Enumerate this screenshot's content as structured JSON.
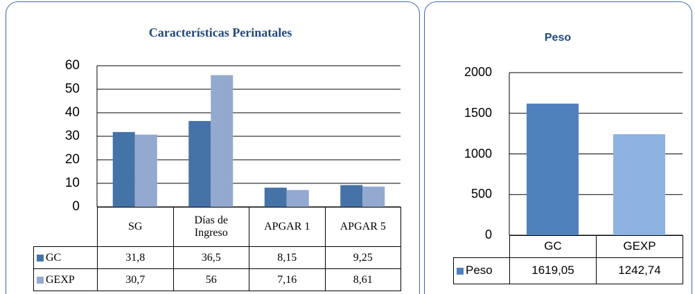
{
  "chart_data": [
    {
      "type": "bar",
      "title": "Características Perinatales",
      "categories": [
        "SG",
        "Días de Ingreso",
        "APGAR 1",
        "APGAR 5"
      ],
      "series": [
        {
          "name": "GC",
          "color": "#4572a7",
          "values": [
            31.8,
            36.5,
            8.15,
            9.25
          ],
          "value_labels": [
            "31,8",
            "36,5",
            "8,15",
            "9,25"
          ]
        },
        {
          "name": "GEXP",
          "color": "#93a9cf",
          "values": [
            30.7,
            56,
            7.16,
            8.61
          ],
          "value_labels": [
            "30,7",
            "56",
            "7,16",
            "8,61"
          ]
        }
      ],
      "ylim": [
        0,
        60
      ],
      "yticks": [
        0,
        10,
        20,
        30,
        40,
        50,
        60
      ],
      "grid": true
    },
    {
      "type": "bar",
      "title": "Peso",
      "categories": [
        "GC",
        "GEXP"
      ],
      "series": [
        {
          "name": "Peso",
          "color": "#4f81bd",
          "colors": [
            "#4f81bd",
            "#8db3e2"
          ],
          "values": [
            1619.05,
            1242.74
          ],
          "value_labels": [
            "1619,05",
            "1242,74"
          ]
        }
      ],
      "ylim": [
        0,
        2000
      ],
      "yticks": [
        0,
        500,
        1000,
        1500,
        2000
      ],
      "grid": true
    }
  ]
}
